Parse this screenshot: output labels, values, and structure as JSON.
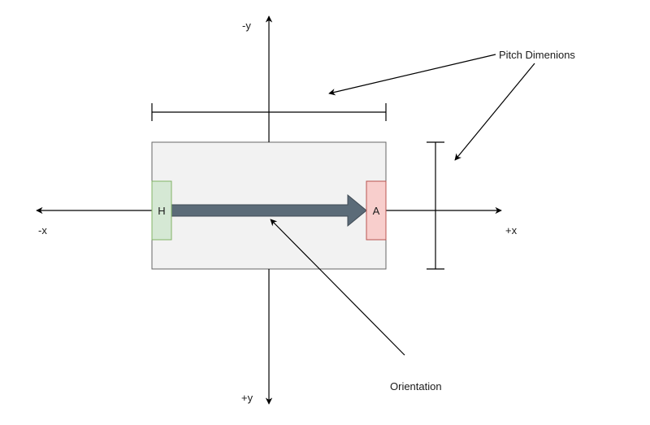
{
  "axes": {
    "neg_x": "-x",
    "pos_x": "+x",
    "neg_y": "-y",
    "pos_y": "+y"
  },
  "goals": {
    "home": "H",
    "away": "A"
  },
  "annotations": {
    "pitch_dimensions": "Pitch Dimenions",
    "orientation": "Orientation"
  },
  "colors": {
    "pitch_fill": "#f2f2f2",
    "pitch_stroke": "#666666",
    "home_fill": "#d5e8d4",
    "home_stroke": "#82b366",
    "away_fill": "#f8cecc",
    "away_stroke": "#b85450",
    "orientation_arrow": "#5b6b78",
    "line": "#000000"
  }
}
